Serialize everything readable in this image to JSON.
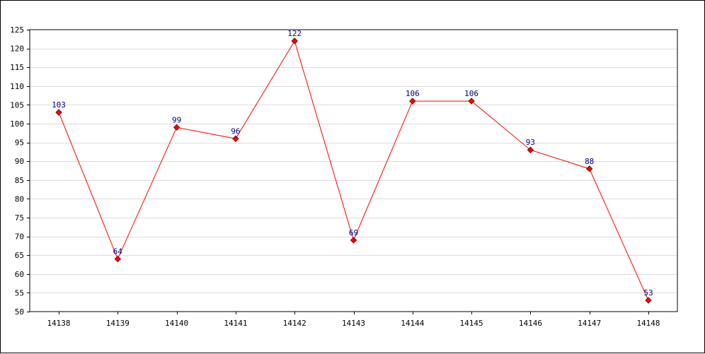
{
  "chart_data": {
    "type": "line",
    "title": "",
    "xlabel": "",
    "ylabel": "",
    "categories": [
      "14138",
      "14139",
      "14140",
      "14141",
      "14142",
      "14143",
      "14144",
      "14145",
      "14146",
      "14147",
      "14148"
    ],
    "series": [
      {
        "values": [
          103,
          64,
          99,
          96,
          122,
          69,
          106,
          106,
          93,
          88,
          53
        ]
      }
    ],
    "ylim": [
      50,
      125
    ],
    "y_ticks": [
      50,
      55,
      60,
      65,
      70,
      75,
      80,
      85,
      90,
      95,
      100,
      105,
      110,
      115,
      120,
      125
    ],
    "grid": true,
    "data_labels": true,
    "legend": "none",
    "colors": {
      "line": "#ff0000",
      "marker_fill": "#ff0000",
      "marker_stroke": "#800000",
      "data_label": "#000080",
      "grid": "#dcdcdc",
      "axis": "#000000"
    }
  }
}
